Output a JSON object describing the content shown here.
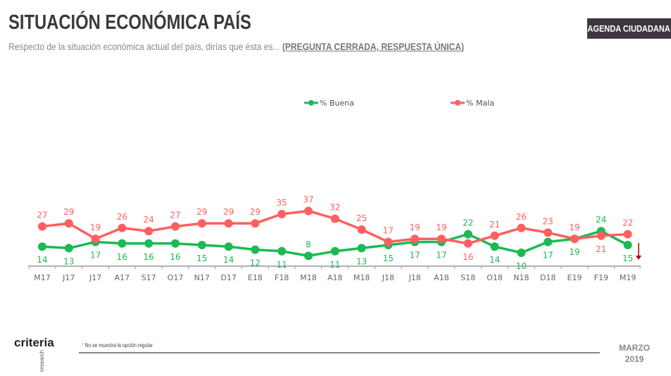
{
  "header": {
    "title": "SITUACIÓN ECONÓMICA PAÍS",
    "subtitle": "Respecto de la situación económica actual del país, dirías que ésta es...",
    "subtitle_note": "(PREGUNTA CERRADA, RESPUESTA ÚNICA)",
    "badge": "AGENDA CIUDADANA"
  },
  "chart_data": {
    "type": "line",
    "categories": [
      "M17",
      "J17",
      "J17",
      "A17",
      "S17",
      "O17",
      "N17",
      "D17",
      "E18",
      "F18",
      "M18",
      "A18",
      "M18",
      "J18",
      "J18",
      "A18",
      "S18",
      "O18",
      "N18",
      "D18",
      "E19",
      "F19",
      "M19"
    ],
    "series": [
      {
        "name": "% Buena",
        "color": "#1db954",
        "values": [
          14,
          13,
          17,
          16,
          16,
          16,
          15,
          14,
          12,
          11,
          8,
          11,
          13,
          15,
          17,
          17,
          22,
          14,
          10,
          17,
          19,
          24,
          15
        ]
      },
      {
        "name": "% Mala",
        "color": "#ff5f5f",
        "values": [
          27,
          29,
          19,
          26,
          24,
          27,
          29,
          29,
          29,
          35,
          37,
          32,
          25,
          17,
          19,
          19,
          16,
          21,
          26,
          23,
          19,
          21,
          22
        ]
      }
    ],
    "legend": "top-center",
    "grid": false,
    "annotation": "down-arrow on last Buena point"
  },
  "footer": {
    "logo": "criteria",
    "logo_sub": "research",
    "note_star": "*",
    "note": " No se muestra la opción regular",
    "date_month": "MARZO",
    "date_year": "2019"
  }
}
